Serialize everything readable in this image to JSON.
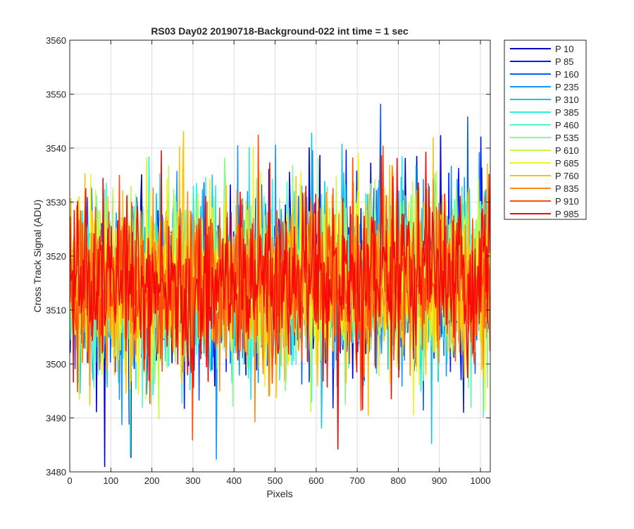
{
  "chart_data": {
    "type": "line",
    "title": "RS03 Day02 20190718-Background-022 int time = 1 sec",
    "xlabel": "Pixels",
    "ylabel": "Cross Track Signal (ADU)",
    "xlim": [
      0,
      1024
    ],
    "ylim": [
      3480,
      3560
    ],
    "x_ticks": [
      0,
      100,
      200,
      300,
      400,
      500,
      600,
      700,
      800,
      900,
      1000
    ],
    "y_ticks": [
      3480,
      3490,
      3500,
      3510,
      3520,
      3530,
      3540,
      3550,
      3560
    ],
    "grid": true,
    "legend_position": "outside-top-right",
    "x_range_points": [
      1,
      1024
    ],
    "series_mean_approx": 3514,
    "series": [
      {
        "name": "P 10",
        "color": "#0000c8"
      },
      {
        "name": "P 85",
        "color": "#0018ff"
      },
      {
        "name": "P 160",
        "color": "#0a5cff"
      },
      {
        "name": "P 235",
        "color": "#1496ff"
      },
      {
        "name": "P 310",
        "color": "#13c6ee"
      },
      {
        "name": "P 385",
        "color": "#21f0ea"
      },
      {
        "name": "P 460",
        "color": "#52f8c6"
      },
      {
        "name": "P 535",
        "color": "#8cf88d"
      },
      {
        "name": "P 610",
        "color": "#c4fa4e"
      },
      {
        "name": "P 685",
        "color": "#f2f51c"
      },
      {
        "name": "P 760",
        "color": "#ffc20a"
      },
      {
        "name": "P 835",
        "color": "#ff8a12"
      },
      {
        "name": "P 910",
        "color": "#ff4d0b"
      },
      {
        "name": "P 985",
        "color": "#f50a08"
      }
    ]
  }
}
